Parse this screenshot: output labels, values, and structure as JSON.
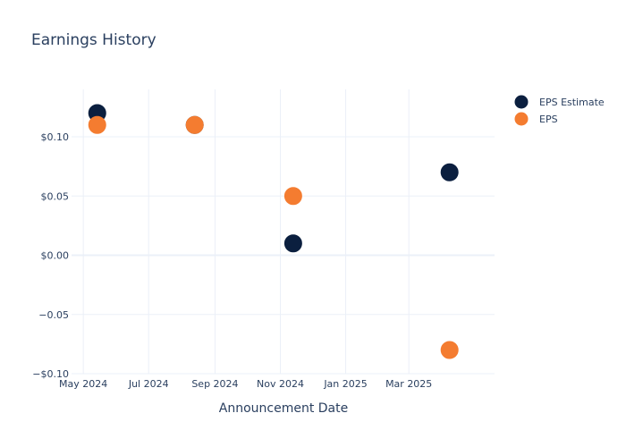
{
  "chart_data": {
    "type": "scatter",
    "title": "Earnings History",
    "xlabel": "Announcement Date",
    "ylabel": "",
    "x_axis_type": "date",
    "xlim": [
      "2024-04-20",
      "2025-05-20"
    ],
    "ylim": [
      -0.1,
      0.14
    ],
    "x_ticks": [
      {
        "date": "2024-05-01",
        "label": "May 2024"
      },
      {
        "date": "2024-07-01",
        "label": "Jul 2024"
      },
      {
        "date": "2024-09-01",
        "label": "Sep 2024"
      },
      {
        "date": "2024-11-01",
        "label": "Nov 2024"
      },
      {
        "date": "2025-01-01",
        "label": "Jan 2025"
      },
      {
        "date": "2025-03-01",
        "label": "Mar 2025"
      }
    ],
    "y_ticks": [
      {
        "value": 0.1,
        "label": "$0.10"
      },
      {
        "value": 0.05,
        "label": "$0.05"
      },
      {
        "value": 0.0,
        "label": "$0.00"
      },
      {
        "value": -0.05,
        "label": "−0.05"
      },
      {
        "value": -0.1,
        "label": "−$0.10"
      }
    ],
    "grid": true,
    "legend_position": "top-right",
    "series": [
      {
        "name": "EPS Estimate",
        "color": "#0b1f3f",
        "points": [
          {
            "x": "2024-05-14",
            "y": 0.12
          },
          {
            "x": "2024-08-13",
            "y": 0.11
          },
          {
            "x": "2024-11-13",
            "y": 0.01
          },
          {
            "x": "2025-04-08",
            "y": 0.07
          }
        ]
      },
      {
        "name": "EPS",
        "color": "#f47c30",
        "points": [
          {
            "x": "2024-05-14",
            "y": 0.11
          },
          {
            "x": "2024-08-13",
            "y": 0.11
          },
          {
            "x": "2024-11-13",
            "y": 0.05
          },
          {
            "x": "2025-04-08",
            "y": -0.08
          }
        ]
      }
    ]
  }
}
